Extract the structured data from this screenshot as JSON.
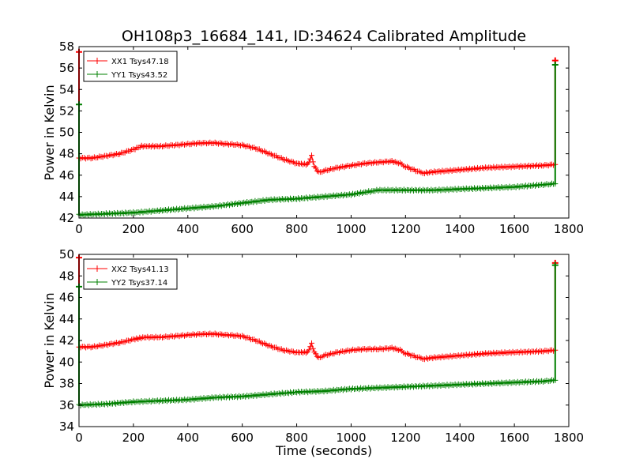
{
  "colors": {
    "xx": "#ff0000",
    "yy": "#008000",
    "axis": "#000000",
    "background": "#ffffff"
  },
  "chart_data": [
    {
      "type": "line",
      "title": "OH108p3_16684_141, ID:34624 Calibrated Amplitude",
      "xlabel": "",
      "ylabel": "Power in Kelvin",
      "xlim": [
        0,
        1800
      ],
      "ylim": [
        42,
        58
      ],
      "xticks": [
        "0",
        "200",
        "400",
        "600",
        "800",
        "1000",
        "1200",
        "1400",
        "1600",
        "1800"
      ],
      "yticks": [
        "42",
        "44",
        "46",
        "48",
        "50",
        "52",
        "54",
        "56",
        "58"
      ],
      "grid": false,
      "legend_position": "top-left",
      "series": [
        {
          "name": "XX1 Tsys47.18",
          "color": "#ff0000",
          "marker": "+",
          "x": [
            0,
            50,
            100,
            150,
            200,
            230,
            300,
            350,
            400,
            450,
            500,
            550,
            600,
            650,
            700,
            750,
            800,
            840,
            855,
            865,
            880,
            900,
            950,
            1000,
            1050,
            1100,
            1150,
            1180,
            1200,
            1250,
            1270,
            1300,
            1400,
            1500,
            1600,
            1700,
            1750
          ],
          "y": [
            47.6,
            47.6,
            47.8,
            48.0,
            48.4,
            48.7,
            48.7,
            48.8,
            48.9,
            49.0,
            49.0,
            48.9,
            48.8,
            48.5,
            48.0,
            47.5,
            47.1,
            47.0,
            47.8,
            46.8,
            46.3,
            46.4,
            46.7,
            46.9,
            47.1,
            47.2,
            47.3,
            47.1,
            46.8,
            46.3,
            46.2,
            46.3,
            46.5,
            46.7,
            46.8,
            46.9,
            47.0
          ],
          "spikes": [
            {
              "x": 0,
              "y_low": 47.6,
              "y_high": 57.5
            },
            {
              "x": 1750,
              "y_low": 47.0,
              "y_high": 56.7
            }
          ]
        },
        {
          "name": "YY1 Tsys43.52",
          "color": "#008000",
          "marker": "+",
          "x": [
            0,
            100,
            200,
            300,
            400,
            500,
            600,
            700,
            800,
            900,
            1000,
            1100,
            1200,
            1300,
            1400,
            1500,
            1600,
            1700,
            1750
          ],
          "y": [
            42.3,
            42.4,
            42.5,
            42.7,
            42.9,
            43.1,
            43.4,
            43.7,
            43.8,
            44.0,
            44.2,
            44.6,
            44.6,
            44.6,
            44.7,
            44.8,
            44.9,
            45.1,
            45.2
          ],
          "spikes": [
            {
              "x": 0,
              "y_low": 42.3,
              "y_high": 52.6
            },
            {
              "x": 1750,
              "y_low": 45.2,
              "y_high": 56.3
            }
          ]
        }
      ]
    },
    {
      "type": "line",
      "title": "",
      "xlabel": "Time (seconds)",
      "ylabel": "Power in Kelvin",
      "xlim": [
        0,
        1800
      ],
      "ylim": [
        34,
        50
      ],
      "xticks": [
        "0",
        "200",
        "400",
        "600",
        "800",
        "1000",
        "1200",
        "1400",
        "1600",
        "1800"
      ],
      "yticks": [
        "34",
        "36",
        "38",
        "40",
        "42",
        "44",
        "46",
        "48",
        "50"
      ],
      "grid": false,
      "legend_position": "top-left",
      "series": [
        {
          "name": "XX2 Tsys41.13",
          "color": "#ff0000",
          "marker": "+",
          "x": [
            0,
            50,
            100,
            150,
            200,
            240,
            300,
            350,
            400,
            450,
            500,
            550,
            600,
            650,
            700,
            750,
            800,
            840,
            855,
            865,
            880,
            900,
            950,
            1000,
            1050,
            1100,
            1150,
            1180,
            1200,
            1250,
            1270,
            1300,
            1400,
            1500,
            1600,
            1700,
            1750
          ],
          "y": [
            41.4,
            41.4,
            41.6,
            41.8,
            42.1,
            42.3,
            42.3,
            42.4,
            42.5,
            42.6,
            42.6,
            42.5,
            42.4,
            42.0,
            41.5,
            41.1,
            40.9,
            40.9,
            41.7,
            40.9,
            40.4,
            40.6,
            40.9,
            41.1,
            41.2,
            41.2,
            41.3,
            41.1,
            40.8,
            40.4,
            40.3,
            40.4,
            40.6,
            40.8,
            40.9,
            41.0,
            41.1
          ],
          "spikes": [
            {
              "x": 0,
              "y_low": 41.4,
              "y_high": 49.7
            },
            {
              "x": 1750,
              "y_low": 41.1,
              "y_high": 49.2
            }
          ]
        },
        {
          "name": "YY2 Tsys37.14",
          "color": "#008000",
          "marker": "+",
          "x": [
            0,
            100,
            200,
            300,
            400,
            500,
            600,
            700,
            800,
            900,
            1000,
            1100,
            1200,
            1300,
            1400,
            1500,
            1600,
            1700,
            1750
          ],
          "y": [
            36.0,
            36.1,
            36.3,
            36.4,
            36.5,
            36.7,
            36.8,
            37.0,
            37.2,
            37.3,
            37.5,
            37.6,
            37.7,
            37.8,
            37.9,
            38.0,
            38.1,
            38.2,
            38.3
          ],
          "spikes": [
            {
              "x": 0,
              "y_low": 36.0,
              "y_high": 47.0
            },
            {
              "x": 1750,
              "y_low": 38.3,
              "y_high": 49.0
            }
          ]
        }
      ]
    }
  ]
}
